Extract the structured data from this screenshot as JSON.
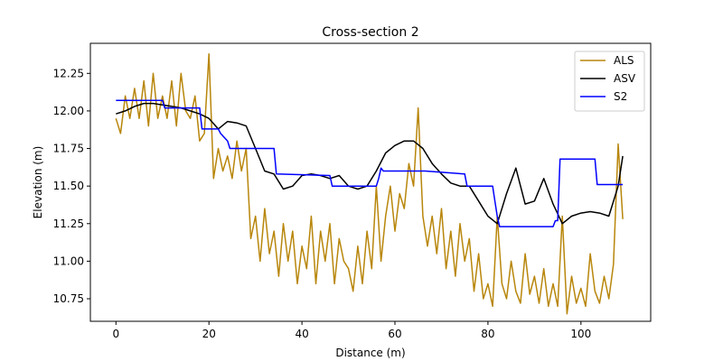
{
  "chart_data": {
    "type": "line",
    "title": "Cross-section 2",
    "xlabel": "Distance (m)",
    "ylabel": "Elevation (m)",
    "xlim": [
      -5.5,
      115
    ],
    "ylim": [
      10.6,
      12.45
    ],
    "xticks": [
      0,
      20,
      40,
      60,
      80,
      100
    ],
    "yticks": [
      10.75,
      11.0,
      11.25,
      11.5,
      11.75,
      12.0,
      12.25
    ],
    "xtick_labels": [
      "0",
      "20",
      "40",
      "60",
      "80",
      "100"
    ],
    "ytick_labels": [
      "10.75",
      "11.00",
      "11.25",
      "11.50",
      "11.75",
      "12.00",
      "12.25"
    ],
    "grid": false,
    "legend_position": "top-right",
    "series": [
      {
        "name": "ALS",
        "color": "#b8860b",
        "x": [
          0,
          1,
          2,
          3,
          4,
          5,
          6,
          7,
          8,
          9,
          10,
          11,
          12,
          13,
          14,
          15,
          16,
          17,
          18,
          19,
          20,
          21,
          22,
          23,
          24,
          25,
          26,
          27,
          28,
          29,
          30,
          31,
          32,
          33,
          34,
          35,
          36,
          37,
          38,
          39,
          40,
          41,
          42,
          43,
          44,
          45,
          46,
          47,
          48,
          49,
          50,
          51,
          52,
          53,
          54,
          55,
          56,
          57,
          58,
          59,
          60,
          61,
          62,
          63,
          64,
          65,
          66,
          67,
          68,
          69,
          70,
          71,
          72,
          73,
          74,
          75,
          76,
          77,
          78,
          79,
          80,
          81,
          82,
          83,
          84,
          85,
          86,
          87,
          88,
          89,
          90,
          91,
          92,
          93,
          94,
          95,
          96,
          97,
          98,
          99,
          100,
          101,
          102,
          103,
          104,
          105,
          106,
          107,
          108,
          109
        ],
        "values": [
          11.95,
          11.85,
          12.1,
          11.95,
          12.15,
          11.95,
          12.2,
          11.9,
          12.25,
          11.95,
          12.1,
          11.95,
          12.2,
          11.9,
          12.25,
          12.0,
          11.95,
          12.1,
          11.8,
          11.85,
          12.38,
          11.55,
          11.75,
          11.6,
          11.7,
          11.55,
          11.8,
          11.6,
          11.75,
          11.15,
          11.3,
          11.0,
          11.35,
          11.05,
          11.2,
          10.9,
          11.25,
          11.0,
          11.2,
          10.85,
          11.1,
          10.95,
          11.3,
          10.85,
          11.2,
          11.0,
          11.25,
          10.85,
          11.15,
          11.0,
          10.95,
          10.8,
          11.1,
          10.85,
          11.2,
          10.95,
          11.5,
          11.0,
          11.3,
          11.5,
          11.2,
          11.45,
          11.35,
          11.65,
          11.5,
          12.02,
          11.3,
          11.1,
          11.3,
          11.05,
          11.35,
          10.95,
          11.2,
          10.9,
          11.25,
          11.0,
          11.15,
          10.8,
          11.05,
          10.75,
          10.85,
          10.7,
          11.3,
          10.85,
          10.75,
          11.0,
          10.8,
          10.72,
          11.05,
          10.78,
          10.9,
          10.72,
          10.95,
          10.7,
          10.85,
          10.7,
          11.3,
          10.65,
          10.9,
          10.72,
          10.82,
          10.7,
          11.05,
          10.8,
          10.72,
          10.9,
          10.75,
          10.98,
          11.78,
          11.28
        ]
      },
      {
        "name": "ASV",
        "color": "#000000",
        "x": [
          0,
          2,
          4,
          6,
          8,
          10,
          12,
          14,
          16,
          18,
          20,
          22,
          24,
          26,
          28,
          30,
          32,
          34,
          36,
          38,
          40,
          42,
          44,
          46,
          48,
          50,
          52,
          54,
          56,
          58,
          60,
          62,
          64,
          66,
          68,
          70,
          72,
          74,
          76,
          78,
          80,
          82,
          84,
          86,
          88,
          90,
          92,
          94,
          96,
          98,
          100,
          102,
          104,
          106,
          108,
          109
        ],
        "values": [
          11.98,
          12.0,
          12.03,
          12.05,
          12.05,
          12.04,
          12.03,
          12.02,
          12.0,
          11.98,
          11.95,
          11.88,
          11.93,
          11.92,
          11.9,
          11.75,
          11.6,
          11.58,
          11.48,
          11.5,
          11.57,
          11.58,
          11.57,
          11.55,
          11.57,
          11.5,
          11.48,
          11.5,
          11.6,
          11.72,
          11.77,
          11.8,
          11.8,
          11.75,
          11.65,
          11.58,
          11.52,
          11.5,
          11.5,
          11.4,
          11.3,
          11.25,
          11.45,
          11.62,
          11.38,
          11.4,
          11.55,
          11.38,
          11.25,
          11.3,
          11.32,
          11.33,
          11.32,
          11.3,
          11.5,
          11.7
        ]
      },
      {
        "name": "S2",
        "color": "#0000ff",
        "x": [
          0,
          10,
          10.5,
          18,
          18.5,
          22,
          22.5,
          24,
          24.5,
          34,
          34.5,
          46,
          46.5,
          56,
          56.5,
          57,
          57.5,
          66,
          66.5,
          75,
          75.5,
          81,
          81.5,
          82,
          82.5,
          92,
          92.5,
          94,
          94.5,
          95,
          95.5,
          103,
          103.5,
          109
        ],
        "values": [
          12.07,
          12.07,
          12.02,
          12.02,
          11.88,
          11.88,
          11.85,
          11.8,
          11.75,
          11.75,
          11.58,
          11.57,
          11.5,
          11.5,
          11.55,
          11.62,
          11.6,
          11.6,
          11.6,
          11.58,
          11.5,
          11.5,
          11.4,
          11.3,
          11.23,
          11.23,
          11.23,
          11.23,
          11.27,
          11.27,
          11.68,
          11.68,
          11.51,
          11.51
        ]
      }
    ]
  }
}
